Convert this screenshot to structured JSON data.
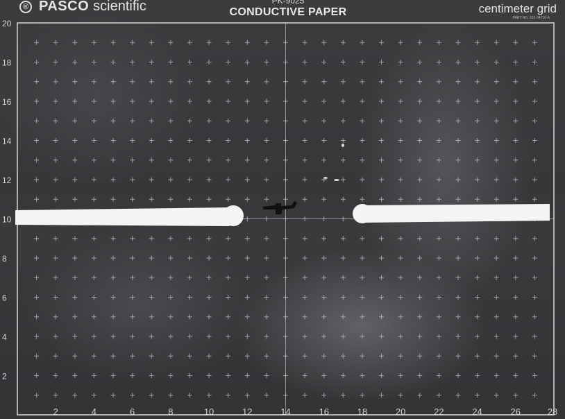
{
  "header": {
    "logo_symbol": "®",
    "brand_bold": "PASCO",
    "brand_light": "scientific",
    "model": "PK-9025",
    "product": "CONDUCTIVE PAPER",
    "grid_type": "centimeter grid",
    "fine_print": "PART NO. 521-04710-A"
  },
  "grid": {
    "x_labels": [
      "2",
      "4",
      "6",
      "8",
      "10",
      "12",
      "14",
      "16",
      "18",
      "20",
      "22",
      "24",
      "26",
      "28"
    ],
    "y_labels": [
      "20",
      "18",
      "16",
      "14",
      "12",
      "10",
      "8",
      "6",
      "4",
      "2"
    ],
    "line_color": "#bfc3c8",
    "border_color": "#d8d8d8"
  },
  "electrodes": {
    "color": "#f4f4f4",
    "left": "left-electrode-bar",
    "right": "right-electrode-bar"
  },
  "probe": {
    "icon": "probe-mark-icon",
    "color": "#111111"
  }
}
